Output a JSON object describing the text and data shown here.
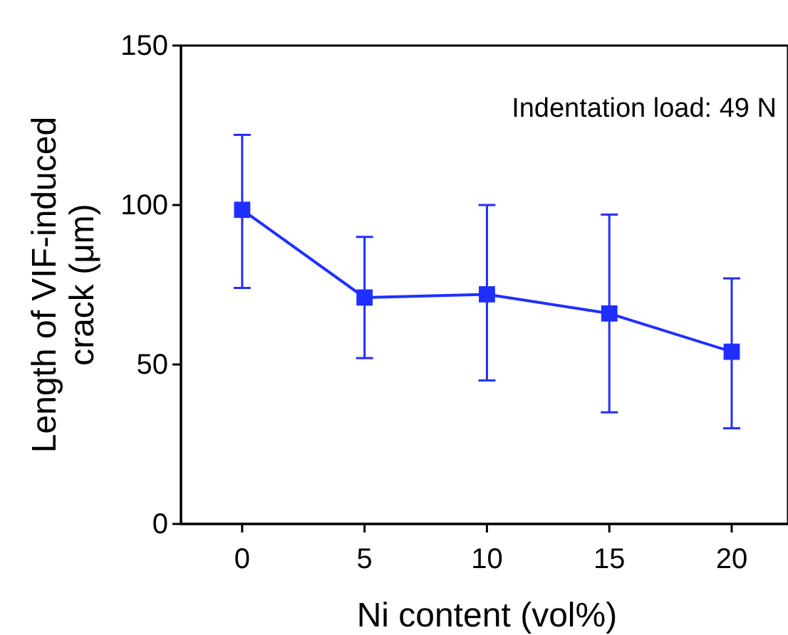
{
  "chart_data": {
    "type": "line",
    "xlabel": "Ni content (vol%)",
    "ylabel": "Length of VIF-induced\ncrack (μm)",
    "annotations": [
      "Indentation load: 49 N"
    ],
    "x": [
      0,
      5,
      10,
      15,
      20
    ],
    "series": [
      {
        "color": "#1f2fff",
        "values": [
          98.5,
          71,
          72,
          66,
          54
        ],
        "errors": [
          [
            74,
            122
          ],
          [
            52,
            90
          ],
          [
            45,
            100
          ],
          [
            35,
            97
          ],
          [
            30,
            77
          ]
        ]
      }
    ],
    "xlim": [
      -2.5,
      22.3
    ],
    "xticks": [
      0,
      5,
      10,
      15,
      20
    ],
    "ylim": [
      0,
      150
    ],
    "yticks": [
      0,
      50,
      100,
      150
    ],
    "marker": "square",
    "line_style": "solid"
  }
}
